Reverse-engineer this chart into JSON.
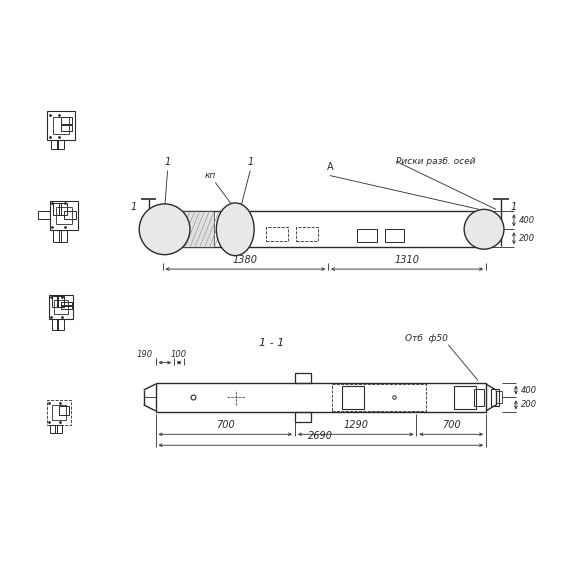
{
  "bg_color": "#ffffff",
  "line_color": "#2a2a2a",
  "fig_width": 5.75,
  "fig_height": 5.75,
  "dpi": 100,
  "top_view": {
    "bx": 1.62,
    "by": 3.28,
    "bw": 3.25,
    "bh": 0.36,
    "label_1_left": "1",
    "label_kp": "кп",
    "label_1_mid": "1",
    "label_A": "А",
    "label_risk": "Риски разб. осей",
    "dim_1380": "1380",
    "dim_1310": "1310",
    "dim_200": "200",
    "dim_400": "400"
  },
  "section_view": {
    "sx": 1.55,
    "sy": 1.62,
    "sw": 3.32,
    "sh": 0.3,
    "label_section": "1 - 1",
    "label_otv": "Отб  ф50",
    "dim_190": "190",
    "dim_100": "100",
    "dim_700_left": "700",
    "dim_1290": "1290",
    "dim_700_right": "700",
    "dim_2690": "2690",
    "dim_200s": "200",
    "dim_400s": "400"
  }
}
